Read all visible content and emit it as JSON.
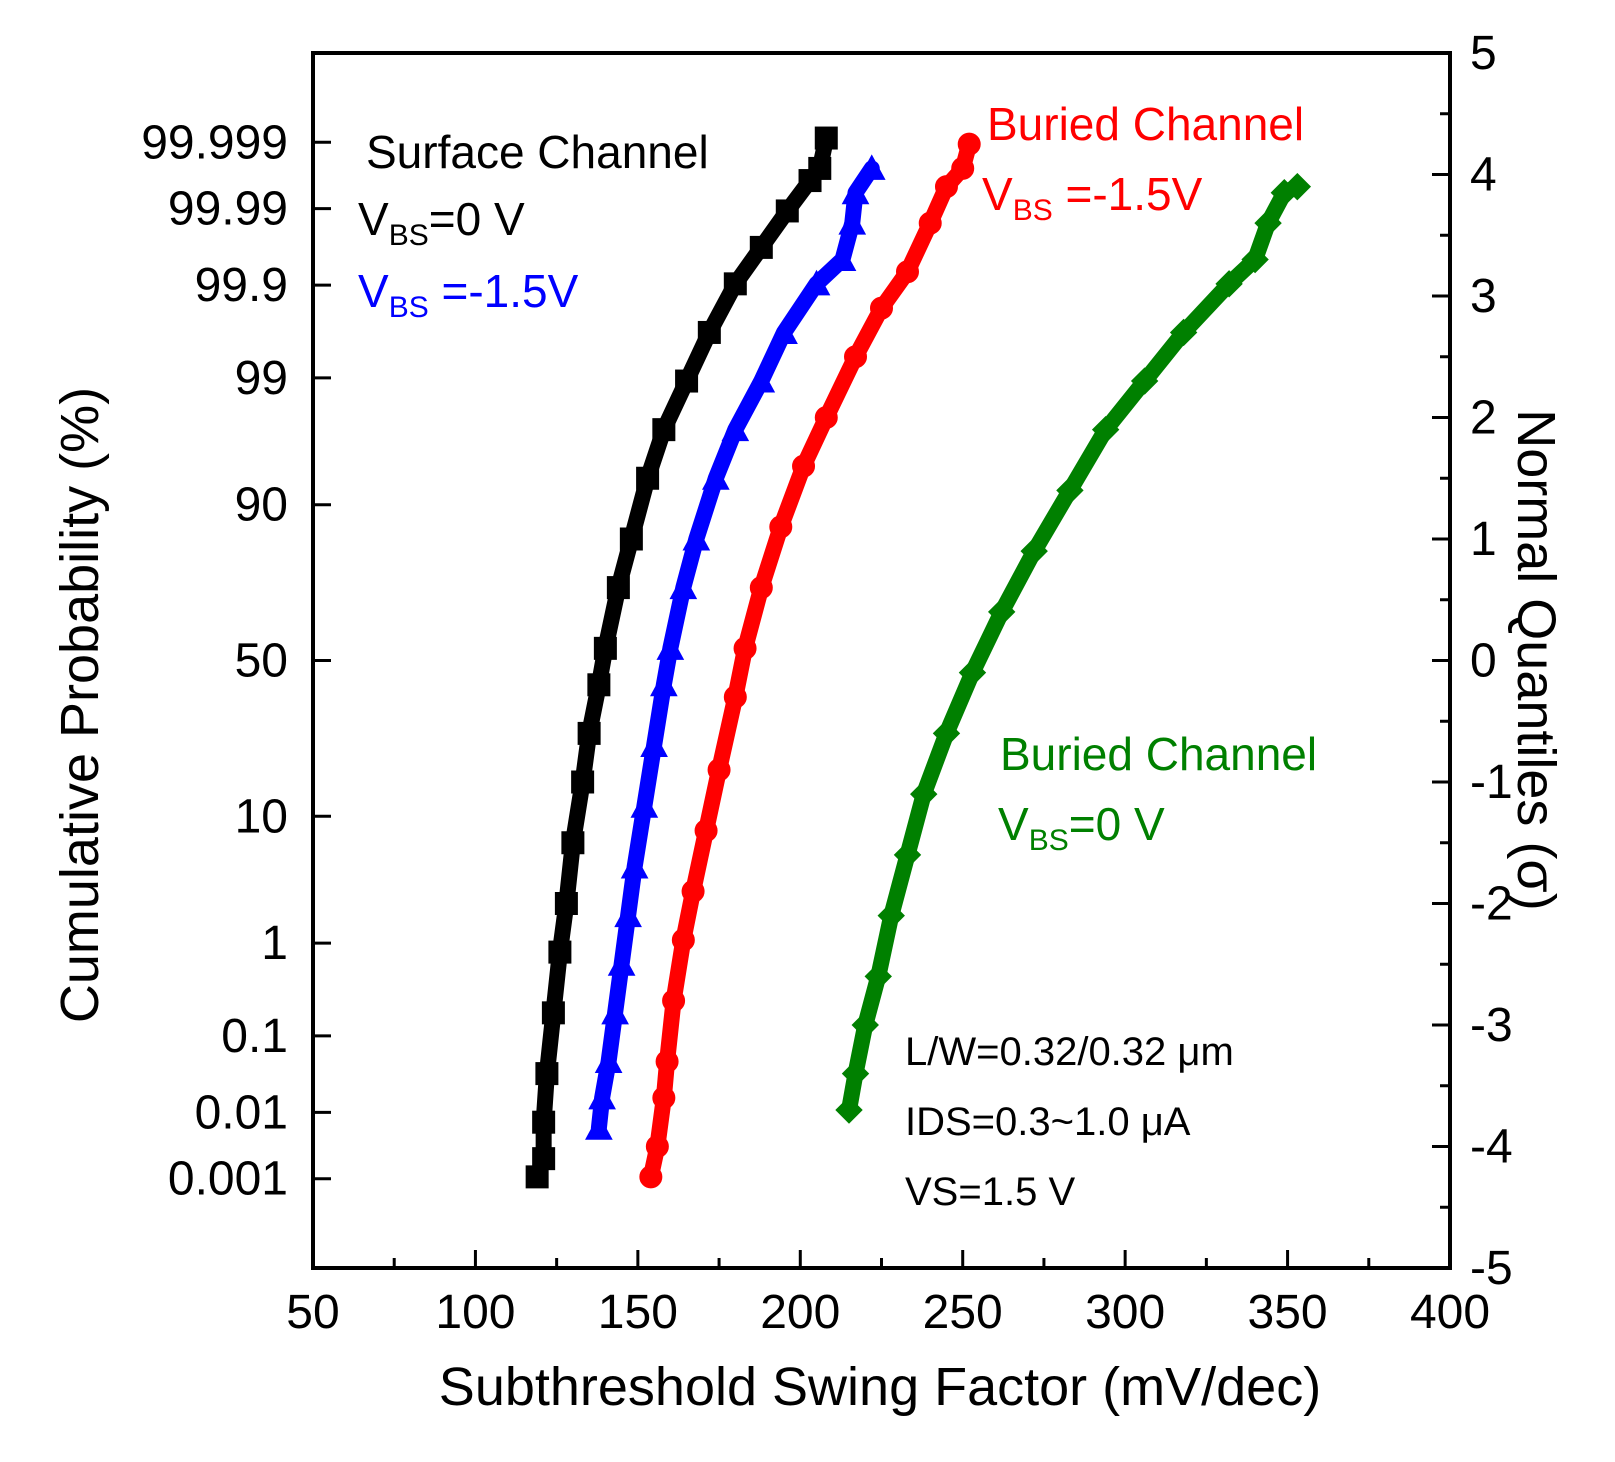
{
  "chart_data": {
    "type": "scatter",
    "title": "",
    "xlabel": "Subthreshold Swing Factor (mV/dec)",
    "ylabel_left": "Cumulative Probability (%)",
    "ylabel_right": "Normal Quantiles (σ)",
    "xlim": [
      50,
      400
    ],
    "ylim": [
      -5,
      5
    ],
    "x_ticks": [
      "50",
      "100",
      "150",
      "200",
      "250",
      "300",
      "350",
      "400"
    ],
    "right_ticks": [
      "5",
      "4",
      "3",
      "2",
      "1",
      "0",
      "-1",
      "-2",
      "-3",
      "-4",
      "-5"
    ],
    "left_ticks": [
      {
        "label": "99.999",
        "z": 4.265
      },
      {
        "label": "99.99",
        "z": 3.719
      },
      {
        "label": "99.9",
        "z": 3.09
      },
      {
        "label": "99",
        "z": 2.326
      },
      {
        "label": "90",
        "z": 1.282
      },
      {
        "label": "50",
        "z": 0
      },
      {
        "label": "10",
        "z": -1.282
      },
      {
        "label": "1",
        "z": -2.326
      },
      {
        "label": "0.1",
        "z": -3.09
      },
      {
        "label": "0.01",
        "z": -3.719
      },
      {
        "label": "0.001",
        "z": -4.265
      }
    ],
    "series": [
      {
        "name": "Surface Channel V_BS=0 V",
        "color": "#000000",
        "marker": "square",
        "points": [
          [
            119,
            -4.25
          ],
          [
            121,
            -4.1
          ],
          [
            121,
            -3.8
          ],
          [
            122,
            -3.4
          ],
          [
            124,
            -2.9
          ],
          [
            126,
            -2.4
          ],
          [
            128,
            -2.0
          ],
          [
            130,
            -1.5
          ],
          [
            133,
            -1.0
          ],
          [
            135,
            -0.6
          ],
          [
            138,
            -0.2
          ],
          [
            140,
            0.1
          ],
          [
            144,
            0.6
          ],
          [
            148,
            1.0
          ],
          [
            153,
            1.5
          ],
          [
            158,
            1.9
          ],
          [
            165,
            2.3
          ],
          [
            172,
            2.7
          ],
          [
            180,
            3.1
          ],
          [
            188,
            3.4
          ],
          [
            196,
            3.7
          ],
          [
            203,
            3.95
          ],
          [
            206,
            4.05
          ],
          [
            208,
            4.3
          ]
        ]
      },
      {
        "name": "V_BS=-1.5V (surface)",
        "color": "#0000ff",
        "marker": "triangle",
        "points": [
          [
            138,
            -3.85
          ],
          [
            139,
            -3.6
          ],
          [
            141,
            -3.3
          ],
          [
            143,
            -2.9
          ],
          [
            145,
            -2.5
          ],
          [
            147,
            -2.1
          ],
          [
            149,
            -1.7
          ],
          [
            152,
            -1.2
          ],
          [
            155,
            -0.7
          ],
          [
            158,
            -0.2
          ],
          [
            160,
            0.1
          ],
          [
            164,
            0.6
          ],
          [
            168,
            1.0
          ],
          [
            174,
            1.5
          ],
          [
            180,
            1.9
          ],
          [
            188,
            2.3
          ],
          [
            195,
            2.7
          ],
          [
            205,
            3.1
          ],
          [
            213,
            3.3
          ],
          [
            216,
            3.6
          ],
          [
            217,
            3.85
          ],
          [
            222,
            4.05
          ]
        ]
      },
      {
        "name": "Buried Channel V_BS=-1.5V",
        "color": "#ff0000",
        "marker": "circle",
        "points": [
          [
            154,
            -4.25
          ],
          [
            156,
            -4.0
          ],
          [
            158,
            -3.6
          ],
          [
            159,
            -3.3
          ],
          [
            161,
            -2.8
          ],
          [
            164,
            -2.3
          ],
          [
            167,
            -1.9
          ],
          [
            171,
            -1.4
          ],
          [
            175,
            -0.9
          ],
          [
            180,
            -0.3
          ],
          [
            183,
            0.1
          ],
          [
            188,
            0.6
          ],
          [
            194,
            1.1
          ],
          [
            201,
            1.6
          ],
          [
            208,
            2.0
          ],
          [
            217,
            2.5
          ],
          [
            225,
            2.9
          ],
          [
            233,
            3.2
          ],
          [
            240,
            3.6
          ],
          [
            245,
            3.9
          ],
          [
            250,
            4.05
          ],
          [
            252,
            4.25
          ]
        ]
      },
      {
        "name": "Buried Channel V_BS=0 V",
        "color": "#008000",
        "marker": "diamond",
        "points": [
          [
            215,
            -3.7
          ],
          [
            217,
            -3.4
          ],
          [
            220,
            -3.0
          ],
          [
            224,
            -2.6
          ],
          [
            228,
            -2.1
          ],
          [
            233,
            -1.6
          ],
          [
            238,
            -1.1
          ],
          [
            245,
            -0.6
          ],
          [
            253,
            -0.1
          ],
          [
            262,
            0.4
          ],
          [
            272,
            0.9
          ],
          [
            283,
            1.4
          ],
          [
            294,
            1.9
          ],
          [
            306,
            2.3
          ],
          [
            318,
            2.7
          ],
          [
            332,
            3.1
          ],
          [
            340,
            3.3
          ],
          [
            344,
            3.6
          ],
          [
            349,
            3.85
          ],
          [
            353,
            3.9
          ]
        ]
      }
    ],
    "annotations": {
      "surface_title": "Surface Channel",
      "surface_vbs0_main": "V",
      "surface_vbs0_sub": "BS",
      "surface_vbs0_val": "=0 V",
      "surface_vbs15_main": "V",
      "surface_vbs15_sub": "BS",
      "surface_vbs15_val": " =-1.5V",
      "buried_red_title": "Buried Channel",
      "buried_red_main": "V",
      "buried_red_sub": "BS",
      "buried_red_val": " =-1.5V",
      "buried_green_title": "Buried Channel",
      "buried_green_main": "V",
      "buried_green_sub": "BS",
      "buried_green_val": "=0 V",
      "cond_lw": "L/W=0.32/0.32  μm",
      "cond_ids": "IDS=0.3~1.0 μA",
      "cond_vs": "VS=1.5 V"
    }
  }
}
